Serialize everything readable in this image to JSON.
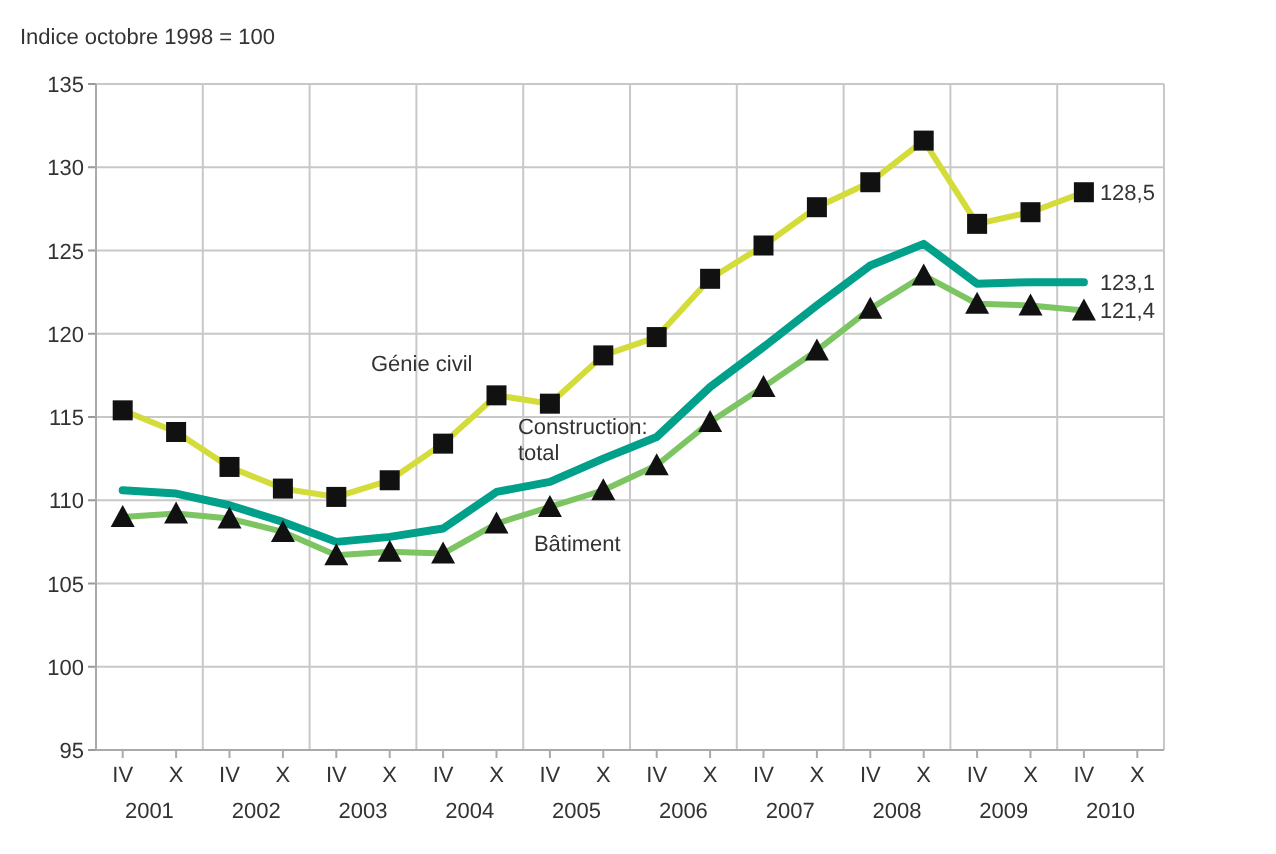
{
  "chart_data": {
    "type": "line",
    "ylabel": "Indice octobre 1998 = 100",
    "categories": [
      "IV",
      "X",
      "IV",
      "X",
      "IV",
      "X",
      "IV",
      "X",
      "IV",
      "X",
      "IV",
      "X",
      "IV",
      "X",
      "IV",
      "X",
      "IV",
      "X",
      "IV",
      "X"
    ],
    "annotations": [
      "2001",
      "2002",
      "2003",
      "2004",
      "2005",
      "2006",
      "2007",
      "2008",
      "2009",
      "2010"
    ],
    "ylim": [
      95,
      135
    ],
    "yticks": [
      95,
      100,
      105,
      110,
      115,
      120,
      125,
      130,
      135
    ],
    "grid": true,
    "series": [
      {
        "name": "Génie civil",
        "color": "#d4dc3a",
        "marker": "square",
        "values": [
          115.4,
          114.1,
          112.0,
          110.7,
          110.2,
          111.2,
          113.4,
          116.3,
          115.8,
          118.7,
          119.8,
          123.3,
          125.3,
          127.6,
          129.1,
          131.6,
          126.6,
          127.3,
          128.5,
          null
        ],
        "value_labels": [
          null,
          null,
          null,
          null,
          null,
          null,
          null,
          null,
          null,
          null,
          null,
          null,
          null,
          null,
          null,
          null,
          null,
          null,
          "128,5",
          null
        ]
      },
      {
        "name": "Construction: total",
        "color": "#00a08a",
        "marker": "none",
        "values": [
          110.6,
          110.4,
          109.7,
          108.7,
          107.5,
          107.8,
          108.3,
          110.5,
          111.1,
          112.5,
          113.8,
          116.8,
          119.2,
          121.7,
          124.1,
          125.4,
          123.0,
          123.1,
          123.1,
          null
        ],
        "value_labels": [
          null,
          null,
          null,
          null,
          null,
          null,
          null,
          null,
          null,
          null,
          null,
          null,
          null,
          null,
          null,
          null,
          null,
          null,
          "123,1",
          null
        ]
      },
      {
        "name": "Bâtiment",
        "color": "#7dc462",
        "marker": "triangle",
        "values": [
          109.0,
          109.2,
          108.9,
          108.1,
          106.7,
          106.9,
          106.8,
          108.6,
          109.6,
          110.6,
          112.1,
          114.7,
          116.8,
          119.0,
          121.5,
          123.5,
          121.8,
          121.7,
          121.4,
          null
        ],
        "value_labels": [
          null,
          null,
          null,
          null,
          null,
          null,
          null,
          null,
          null,
          null,
          null,
          null,
          null,
          null,
          null,
          null,
          null,
          null,
          "121,4",
          null
        ]
      }
    ]
  }
}
